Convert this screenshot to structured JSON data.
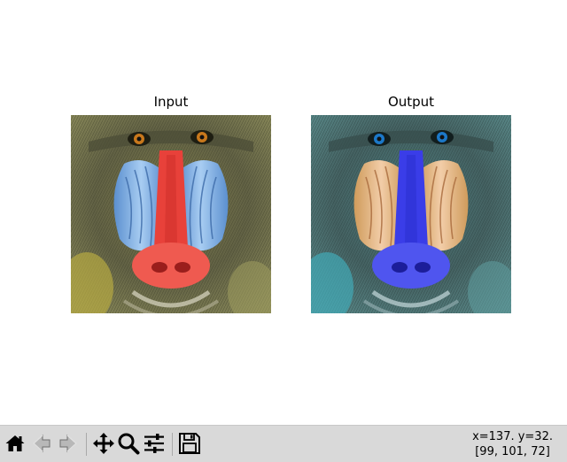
{
  "figure": {
    "axes": [
      {
        "title": "Input"
      },
      {
        "title": "Output"
      }
    ]
  },
  "toolbar": {
    "buttons": [
      {
        "name": "home",
        "icon": "home-icon"
      },
      {
        "name": "back",
        "icon": "back-arrow-icon"
      },
      {
        "name": "forward",
        "icon": "forward-arrow-icon"
      },
      {
        "name": "pan",
        "icon": "move-icon"
      },
      {
        "name": "zoom",
        "icon": "magnifier-icon"
      },
      {
        "name": "configure-subplots",
        "icon": "sliders-icon"
      },
      {
        "name": "save",
        "icon": "floppy-disk-icon"
      }
    ]
  },
  "status": {
    "coords": "x=137. y=32.",
    "pixel_value": "[99, 101, 72]"
  },
  "colors": {
    "toolbar_bg": "#d9d9d9",
    "input_nose": "#e8413a",
    "input_cheeks": "#74a6e0",
    "output_nose": "#3a3de8",
    "output_cheeks": "#e0ae74"
  }
}
